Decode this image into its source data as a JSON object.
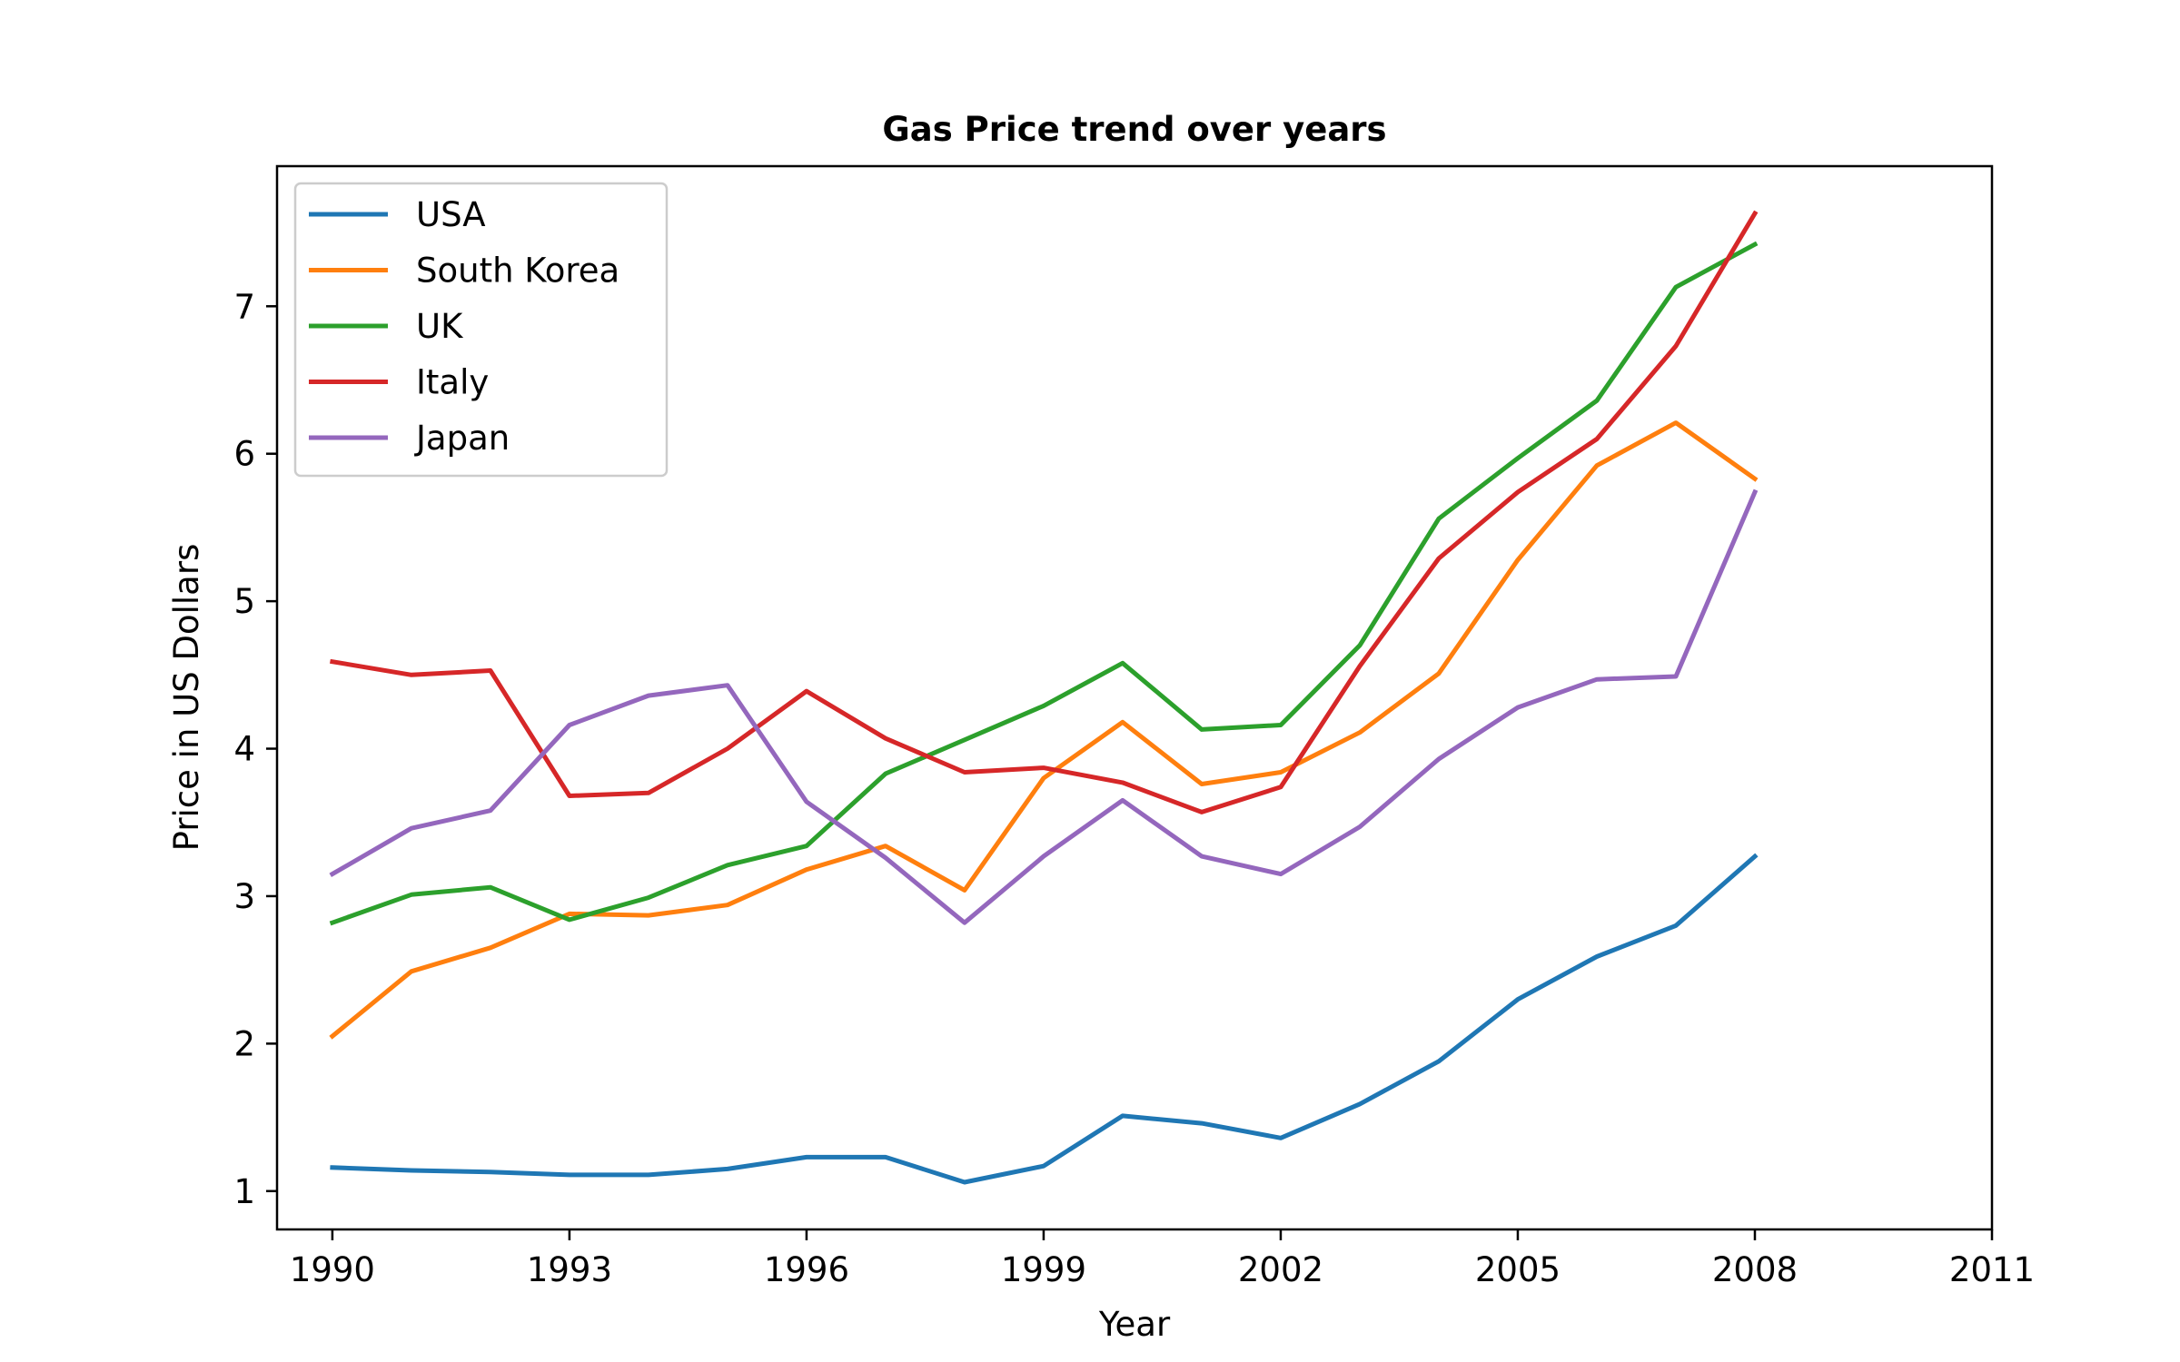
{
  "chart_data": {
    "type": "line",
    "title": "Gas Price trend over years",
    "xlabel": "Year",
    "ylabel": "Price in US Dollars",
    "x": [
      1990,
      1991,
      1992,
      1993,
      1994,
      1995,
      1996,
      1997,
      1998,
      1999,
      2000,
      2001,
      2002,
      2003,
      2004,
      2005,
      2006,
      2007,
      2008
    ],
    "xlim": [
      1989.3,
      2011.0
    ],
    "ylim": [
      0.74,
      7.95
    ],
    "xticks": [
      1990,
      1993,
      1996,
      1999,
      2002,
      2005,
      2008,
      2011
    ],
    "xtick_labels": [
      "1990",
      "1993",
      "1996",
      "1999",
      "2002",
      "2005",
      "2008",
      "2011"
    ],
    "yticks": [
      1,
      2,
      3,
      4,
      5,
      6,
      7
    ],
    "ytick_labels": [
      "1",
      "2",
      "3",
      "4",
      "5",
      "6",
      "7"
    ],
    "grid": false,
    "legend_position": "top-left",
    "series": [
      {
        "name": "USA",
        "color": "#1f77b4",
        "values": [
          1.16,
          1.14,
          1.13,
          1.11,
          1.11,
          1.15,
          1.23,
          1.23,
          1.06,
          1.17,
          1.51,
          1.46,
          1.36,
          1.59,
          1.88,
          2.3,
          2.59,
          2.8,
          3.27
        ]
      },
      {
        "name": "South Korea",
        "color": "#ff7f0e",
        "values": [
          2.05,
          2.49,
          2.65,
          2.88,
          2.87,
          2.94,
          3.18,
          3.34,
          3.04,
          3.8,
          4.18,
          3.76,
          3.84,
          4.11,
          4.51,
          5.28,
          5.92,
          6.21,
          5.83
        ]
      },
      {
        "name": "UK",
        "color": "#2ca02c",
        "values": [
          2.82,
          3.01,
          3.06,
          2.84,
          2.99,
          3.21,
          3.34,
          3.83,
          4.06,
          4.29,
          4.58,
          4.13,
          4.16,
          4.7,
          5.56,
          5.97,
          6.36,
          7.13,
          7.42
        ]
      },
      {
        "name": "Italy",
        "color": "#d62728",
        "values": [
          4.59,
          4.5,
          4.53,
          3.68,
          3.7,
          4.0,
          4.39,
          4.07,
          3.84,
          3.87,
          3.77,
          3.57,
          3.74,
          4.56,
          5.29,
          5.74,
          6.1,
          6.73,
          7.63
        ]
      },
      {
        "name": "Japan",
        "color": "#9467bd",
        "values": [
          3.15,
          3.46,
          3.58,
          4.16,
          4.36,
          4.43,
          3.64,
          3.26,
          2.82,
          3.27,
          3.65,
          3.27,
          3.15,
          3.47,
          3.93,
          4.28,
          4.47,
          4.49,
          5.74
        ]
      }
    ]
  }
}
